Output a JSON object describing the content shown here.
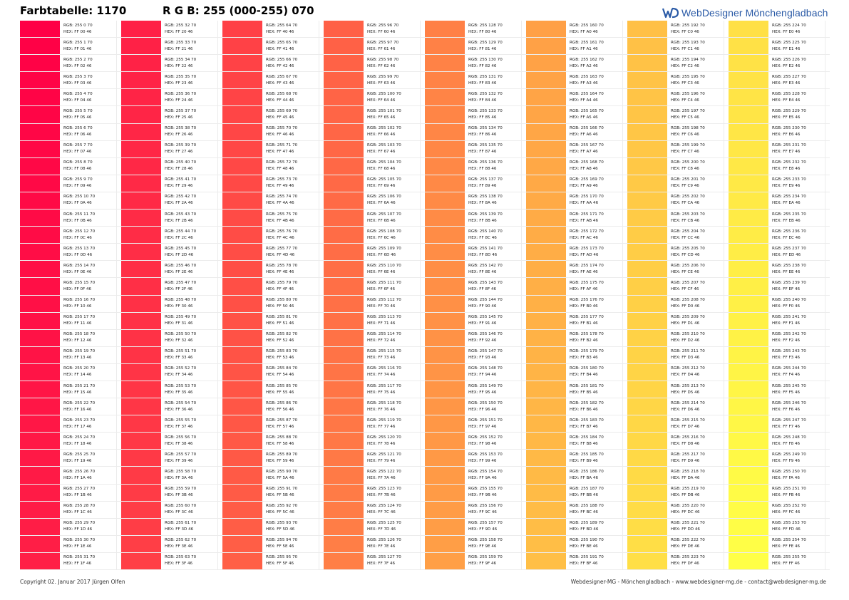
{
  "header": {
    "title": "Farbtabelle: 1170",
    "rgb_label": "R G B: 255 (000-255) 070",
    "logo_text": "WebDesigner Mönchengladbach",
    "logo_icon": "wd-logo-icon",
    "logo_color": "#2a5aa6"
  },
  "table": {
    "r": 255,
    "b": 70,
    "g_start": 0,
    "g_end": 255,
    "columns": 8,
    "rows_per_column": 32,
    "rgb_prefix": "RGB:",
    "hex_prefix": "HEX:"
  },
  "footer": {
    "copyright": "Copyright 02. Januar 2017 Jürgen Olfen",
    "contact": "Webdesigner-MG - Mönchengladbach - www.webdesigner-mg.de - contact@webdesigner-mg.de"
  }
}
